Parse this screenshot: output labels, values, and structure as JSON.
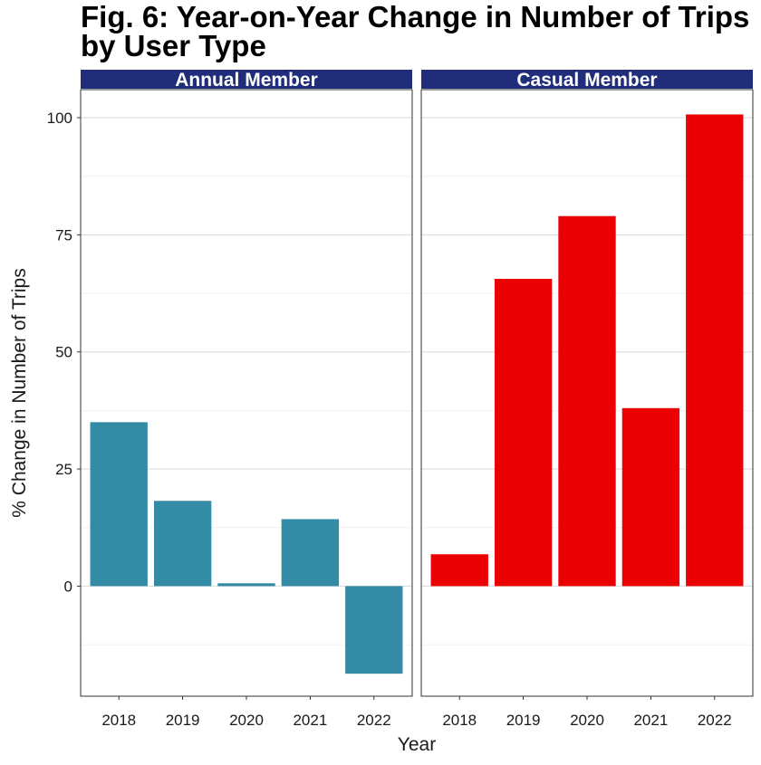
{
  "chart_data": {
    "type": "bar",
    "title_lines": [
      "Fig. 6: Year-on-Year Change in Number of Trips",
      "by User Type"
    ],
    "xlabel": "Year",
    "ylabel": "% Change in Number of Trips",
    "categories": [
      "2018",
      "2019",
      "2020",
      "2021",
      "2022"
    ],
    "ylim": [
      -23.5,
      106
    ],
    "yticks": [
      0,
      25,
      50,
      75,
      100
    ],
    "grid": true,
    "legend": "none",
    "panels": [
      {
        "strip_label": "Annual Member",
        "color": "#338BA6",
        "values": [
          35.0,
          18.2,
          0.6,
          14.3,
          -18.7
        ]
      },
      {
        "strip_label": "Casual Member",
        "color": "#EB0003",
        "values": [
          6.8,
          65.6,
          79.0,
          38.0,
          100.7
        ]
      }
    ],
    "strip_color": "#1F2D7A"
  }
}
